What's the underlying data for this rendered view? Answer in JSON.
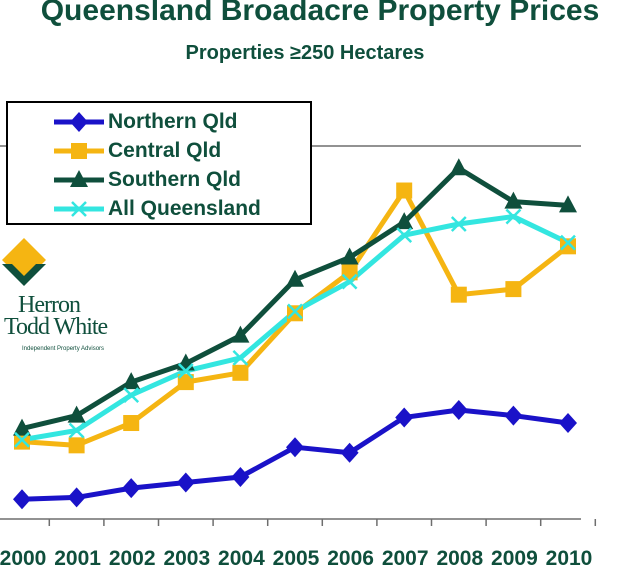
{
  "chart_data": {
    "type": "line",
    "title": "Queensland Broadacre Property Prices",
    "subtitle": "Properties ≥250 Hectares",
    "xlabel": "",
    "ylabel": "",
    "categories": [
      "2000",
      "2001",
      "2002",
      "2003",
      "2004",
      "2005",
      "2006",
      "2007",
      "2008",
      "2009",
      "2010"
    ],
    "grid": false,
    "legend_position": "top-left",
    "series": [
      {
        "name": "Northern Qld",
        "color": "#1a12c8",
        "marker": "diamond",
        "values": [
          2,
          3,
          8,
          11,
          14,
          30,
          27,
          46,
          50,
          47,
          43
        ]
      },
      {
        "name": "Central Qld",
        "color": "#f5b512",
        "marker": "square",
        "values": [
          33,
          31,
          43,
          65,
          70,
          102,
          124,
          168,
          112,
          115,
          138
        ]
      },
      {
        "name": "Southern Qld",
        "color": "#0f4f3c",
        "marker": "triangle",
        "values": [
          40,
          47,
          65,
          75,
          90,
          120,
          132,
          151,
          180,
          162,
          160
        ]
      },
      {
        "name": "All Queensland",
        "color": "#33e6e0",
        "marker": "x",
        "values": [
          34,
          39,
          58,
          71,
          78,
          103,
          119,
          144,
          150,
          154,
          140
        ]
      }
    ]
  },
  "logo": {
    "name_line1": "Herron",
    "name_line2": "Todd White",
    "tagline": "Independent Property Advisors",
    "colors": [
      "#f5b512",
      "#0f4f3c"
    ]
  }
}
